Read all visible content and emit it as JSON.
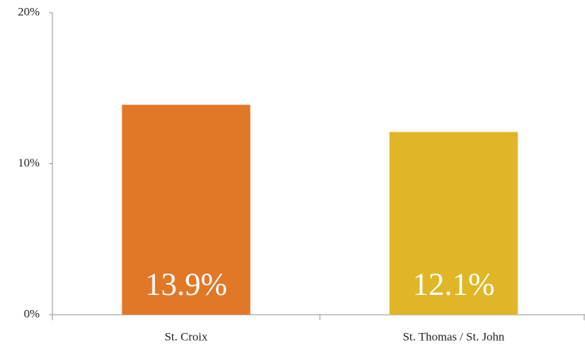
{
  "chart_data": {
    "type": "bar",
    "categories": [
      "St. Croix",
      "St. Thomas / St. John"
    ],
    "values": [
      13.9,
      12.1
    ],
    "value_labels": [
      "13.9%",
      "12.1%"
    ],
    "colors": [
      "#e07828",
      "#e0b626"
    ],
    "ylim": [
      0,
      20
    ],
    "yticks": [
      {
        "value": 0,
        "label": "0%"
      },
      {
        "value": 10,
        "label": "10%"
      },
      {
        "value": 20,
        "label": "20%"
      }
    ],
    "grid": false
  }
}
